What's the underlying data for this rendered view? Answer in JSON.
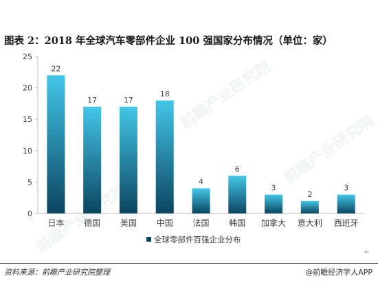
{
  "title": "图表 2：2018 年全球汽车零部件企业 100 强国家分布情况（单位：家）",
  "footer": {
    "source": "资料来源：前瞻产业研究院整理",
    "brand": "@前瞻经济学人APP"
  },
  "return_mark": "↵",
  "watermark": "前瞻产业研究院",
  "colors": {
    "bar_top": "#43c6e8",
    "bar_bottom": "#0b4560",
    "axis": "#bfbfbf",
    "text": "#404040"
  },
  "chart_data": {
    "type": "bar",
    "categories": [
      "日本",
      "德国",
      "美国",
      "中国",
      "法国",
      "韩国",
      "加拿大",
      "意大利",
      "西班牙"
    ],
    "series": [
      {
        "name": "全球零部件百强企业分布",
        "values": [
          22,
          17,
          17,
          18,
          4,
          6,
          3,
          2,
          3
        ]
      }
    ],
    "ylim": [
      0,
      25
    ],
    "yticks": [
      0,
      5,
      10,
      15,
      20,
      25
    ],
    "grid": false,
    "legend": "bottom-center",
    "data_labels": true
  }
}
